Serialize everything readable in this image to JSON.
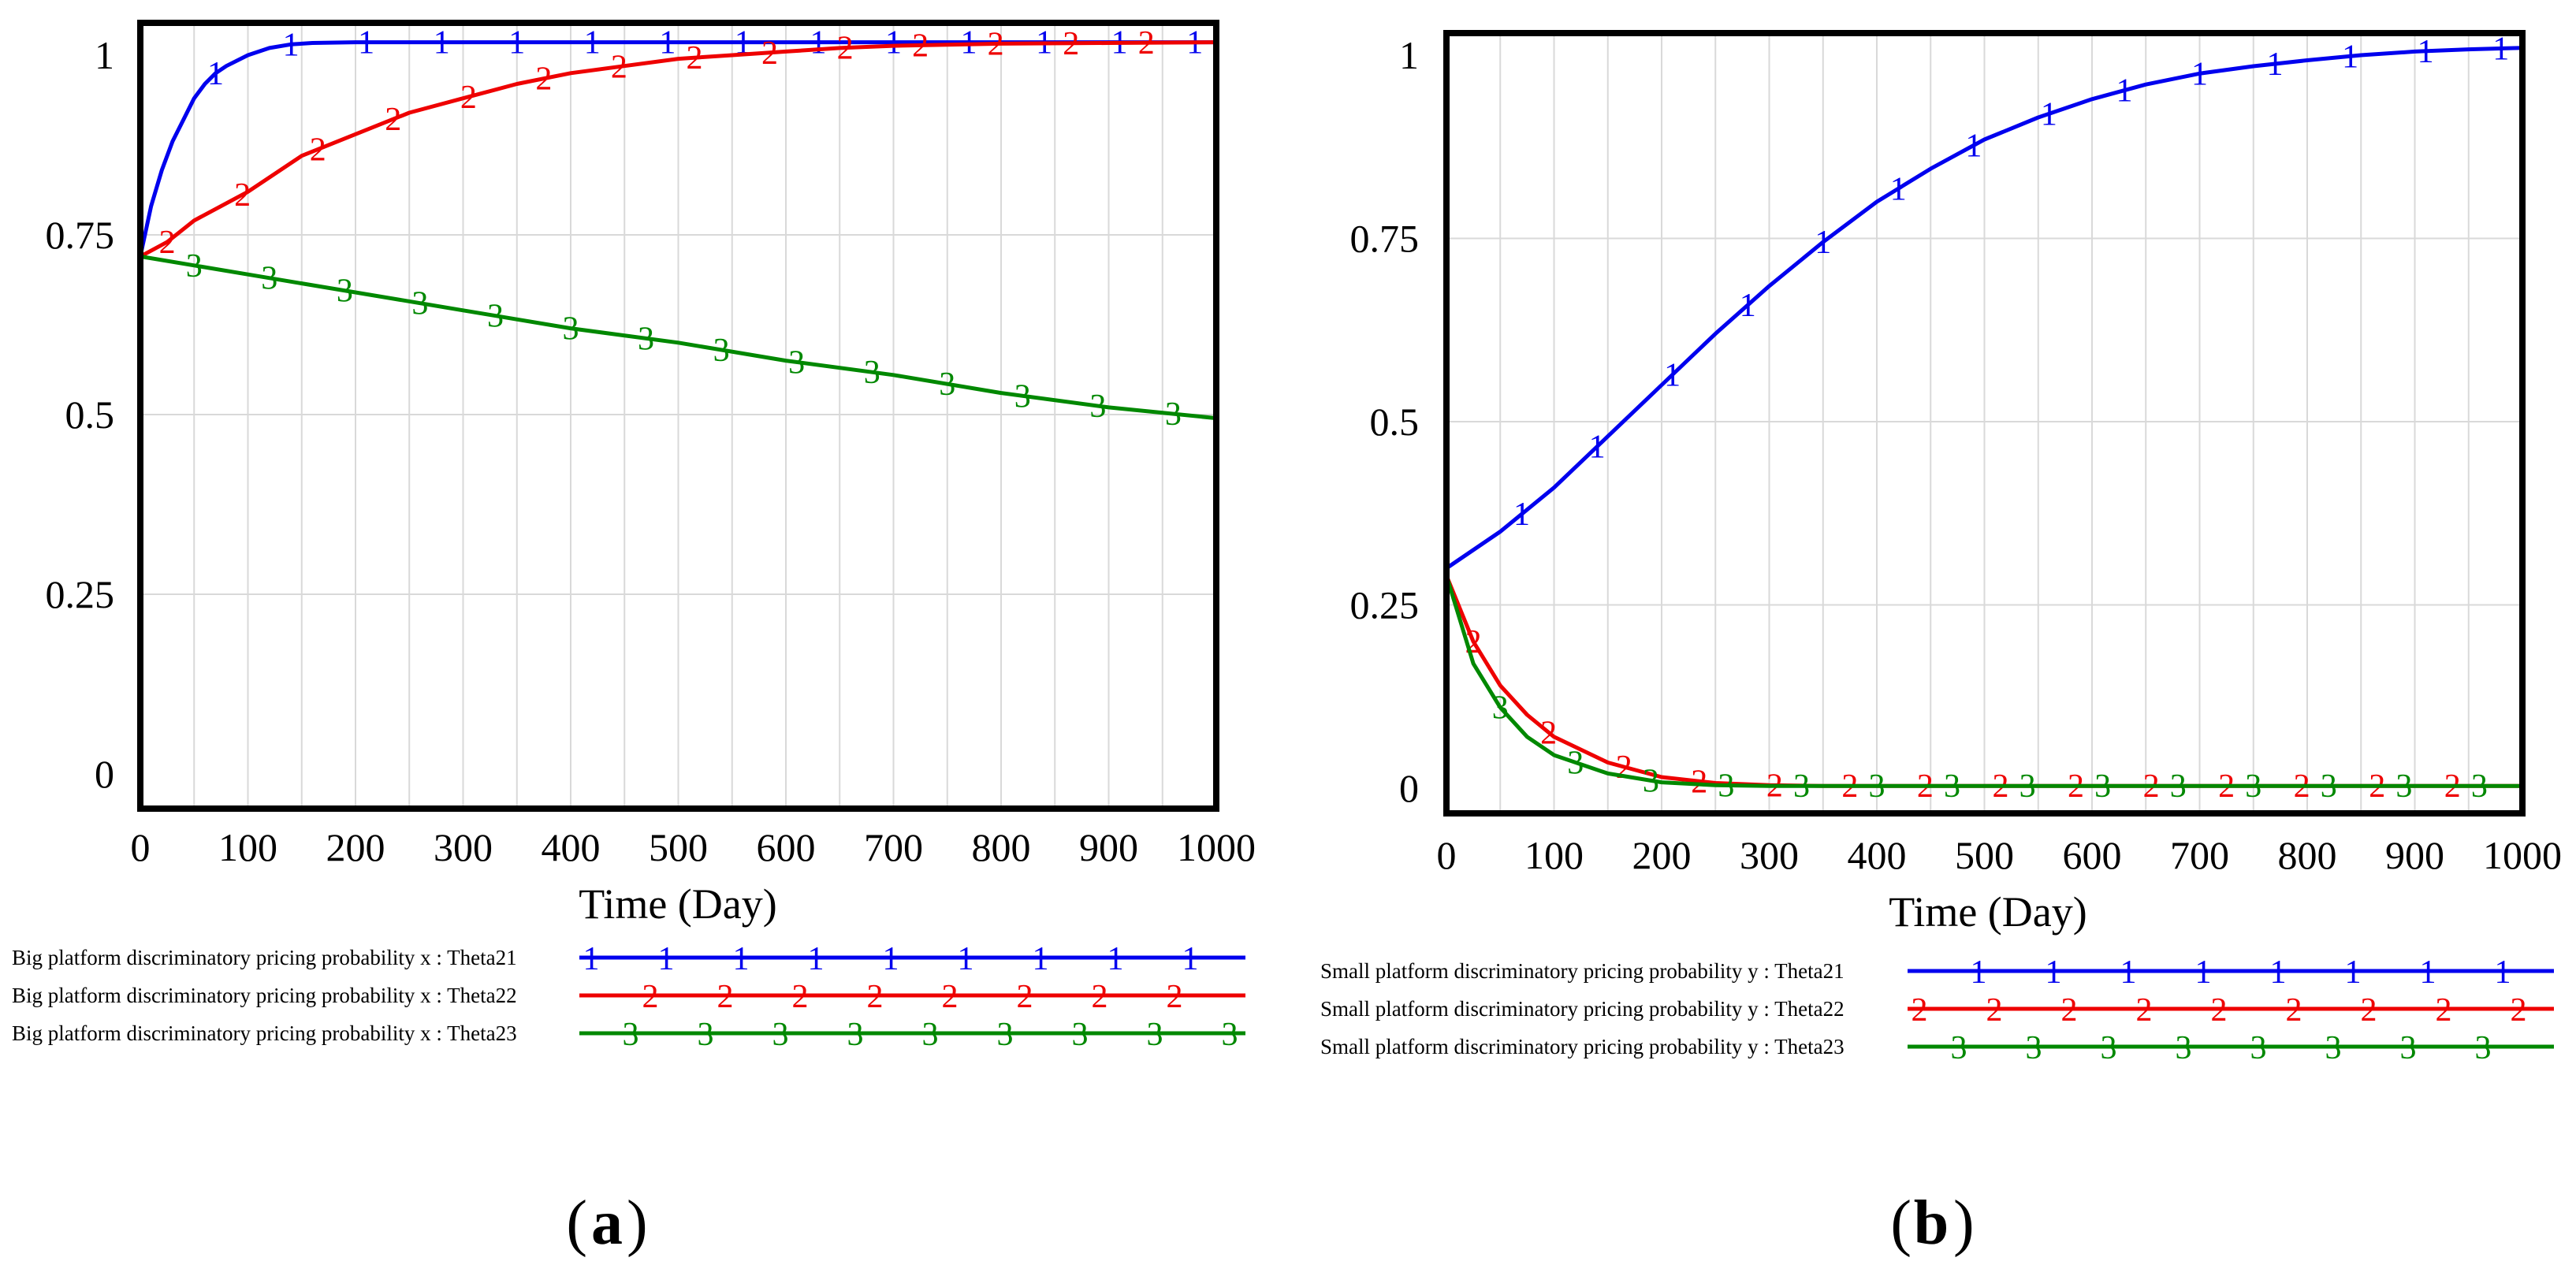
{
  "colors": {
    "series1": "#0000ee",
    "series2": "#ee0000",
    "series3": "#008800",
    "grid": "#d9d9d9",
    "frame": "#000000"
  },
  "chart_data": [
    {
      "id": "a",
      "type": "line",
      "panel_label": "a",
      "xlabel": "Time (Day)",
      "ylabel": "",
      "xlim": [
        0,
        1000
      ],
      "ylim": [
        0,
        1
      ],
      "x_ticks": [
        "0",
        "100",
        "200",
        "300",
        "400",
        "500",
        "600",
        "700",
        "800",
        "900",
        "1000"
      ],
      "y_ticks": [
        "0",
        "0.25",
        "0.5",
        "0.75",
        "1"
      ],
      "grid": true,
      "legend_position": "below",
      "series": [
        {
          "name": "Big platform discriminatory pricing probability x : Theta21",
          "marker": "1",
          "x": [
            0,
            10,
            20,
            30,
            40,
            50,
            60,
            70,
            80,
            100,
            120,
            140,
            160,
            200,
            300,
            400,
            500,
            600,
            700,
            800,
            900,
            1000
          ],
          "y": [
            0.72,
            0.79,
            0.84,
            0.88,
            0.91,
            0.94,
            0.96,
            0.975,
            0.985,
            1.0,
            1.01,
            1.015,
            1.017,
            1.018,
            1.018,
            1.018,
            1.018,
            1.018,
            1.018,
            1.018,
            1.018,
            1.018
          ]
        },
        {
          "name": "Big platform discriminatory pricing probability x : Theta22",
          "marker": "2",
          "x": [
            0,
            25,
            50,
            100,
            150,
            200,
            250,
            300,
            350,
            400,
            450,
            500,
            550,
            600,
            650,
            700,
            800,
            900,
            1000
          ],
          "y": [
            0.72,
            0.74,
            0.77,
            0.81,
            0.86,
            0.89,
            0.92,
            0.94,
            0.96,
            0.975,
            0.985,
            0.995,
            1.0,
            1.005,
            1.01,
            1.013,
            1.016,
            1.017,
            1.018
          ]
        },
        {
          "name": "Big platform discriminatory pricing probability x : Theta23",
          "marker": "3",
          "x": [
            0,
            100,
            200,
            300,
            400,
            500,
            600,
            700,
            800,
            900,
            1000
          ],
          "y": [
            0.72,
            0.695,
            0.67,
            0.645,
            0.62,
            0.6,
            0.575,
            0.555,
            0.53,
            0.51,
            0.495
          ]
        }
      ]
    },
    {
      "id": "b",
      "type": "line",
      "panel_label": "b",
      "xlabel": "Time (Day)",
      "ylabel": "",
      "xlim": [
        0,
        1000
      ],
      "ylim": [
        0,
        1
      ],
      "x_ticks": [
        "0",
        "100",
        "200",
        "300",
        "400",
        "500",
        "600",
        "700",
        "800",
        "900",
        "1000"
      ],
      "y_ticks": [
        "0",
        "0.25",
        "0.5",
        "0.75",
        "1"
      ],
      "grid": true,
      "legend_position": "below",
      "series": [
        {
          "name": "Small platform discriminatory pricing probability y : Theta21",
          "marker": "1",
          "x": [
            0,
            50,
            100,
            150,
            200,
            250,
            300,
            350,
            400,
            450,
            500,
            550,
            600,
            650,
            700,
            750,
            800,
            850,
            900,
            950,
            1000
          ],
          "y": [
            0.3,
            0.35,
            0.41,
            0.48,
            0.55,
            0.62,
            0.685,
            0.745,
            0.8,
            0.845,
            0.885,
            0.915,
            0.94,
            0.96,
            0.975,
            0.985,
            0.993,
            1.0,
            1.005,
            1.008,
            1.01
          ]
        },
        {
          "name": "Small platform discriminatory pricing probability y : Theta22",
          "marker": "2",
          "x": [
            0,
            25,
            50,
            75,
            100,
            150,
            200,
            250,
            300,
            350,
            400,
            500,
            600,
            700,
            800,
            900,
            1000
          ],
          "y": [
            0.29,
            0.2,
            0.14,
            0.1,
            0.07,
            0.035,
            0.015,
            0.007,
            0.004,
            0.003,
            0.003,
            0.003,
            0.003,
            0.003,
            0.003,
            0.003,
            0.003
          ]
        },
        {
          "name": "Small platform discriminatory pricing probability y : Theta23",
          "marker": "3",
          "x": [
            0,
            25,
            50,
            75,
            100,
            150,
            200,
            250,
            300,
            350,
            400,
            500,
            600,
            700,
            800,
            900,
            1000
          ],
          "y": [
            0.29,
            0.17,
            0.11,
            0.07,
            0.045,
            0.02,
            0.008,
            0.004,
            0.003,
            0.003,
            0.003,
            0.003,
            0.003,
            0.003,
            0.003,
            0.003,
            0.003
          ]
        }
      ]
    }
  ]
}
